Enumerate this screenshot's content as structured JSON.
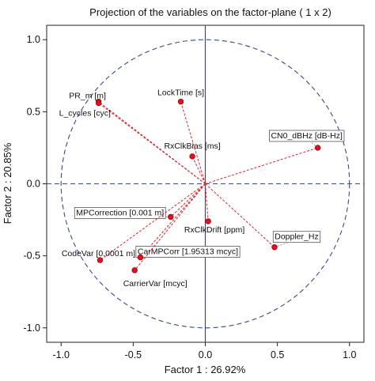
{
  "chart_data": {
    "type": "scatter",
    "title": "Projection of the variables on the factor-plane ( 1 x  2)",
    "xlabel": "Factor 1 : 26.92%",
    "ylabel": "Factor 2 : 20.85%",
    "xlim": [
      -1.1,
      1.1
    ],
    "ylim": [
      -1.1,
      1.1
    ],
    "xticks": [
      "-1.0",
      "-0.5",
      "0.0",
      "0.5",
      "1.0"
    ],
    "yticks": [
      "1.0",
      "0.5",
      "0.0",
      "-0.5",
      "-1.0"
    ],
    "unit_circle": true,
    "grid": false,
    "points": [
      {
        "label": "PR_m [m]",
        "x": -0.74,
        "y": 0.57,
        "boxed": false
      },
      {
        "label": "L_cycles [cyc]",
        "x": -0.74,
        "y": 0.56,
        "boxed": false
      },
      {
        "label": "LockTime [s]",
        "x": -0.17,
        "y": 0.57,
        "boxed": false
      },
      {
        "label": "CN0_dBHz [dB-Hz]",
        "x": 0.78,
        "y": 0.25,
        "boxed": true
      },
      {
        "label": "RxClkBias [ms]",
        "x": -0.09,
        "y": 0.19,
        "boxed": false
      },
      {
        "label": "MPCorrection [0.001 m]",
        "x": -0.24,
        "y": -0.23,
        "boxed": true
      },
      {
        "label": "RxClkDrift [ppm]",
        "x": 0.02,
        "y": -0.26,
        "boxed": false
      },
      {
        "label": "Doppler_Hz",
        "x": 0.48,
        "y": -0.44,
        "boxed": true
      },
      {
        "label": "CodeVar [0.0001 m]",
        "x": -0.73,
        "y": -0.53,
        "boxed": false
      },
      {
        "label": "CarMPCorr [1.95313 mcyc]",
        "x": -0.45,
        "y": -0.51,
        "boxed": true
      },
      {
        "label": "CarrierVar [mcyc]",
        "x": -0.49,
        "y": -0.6,
        "boxed": false
      }
    ]
  }
}
